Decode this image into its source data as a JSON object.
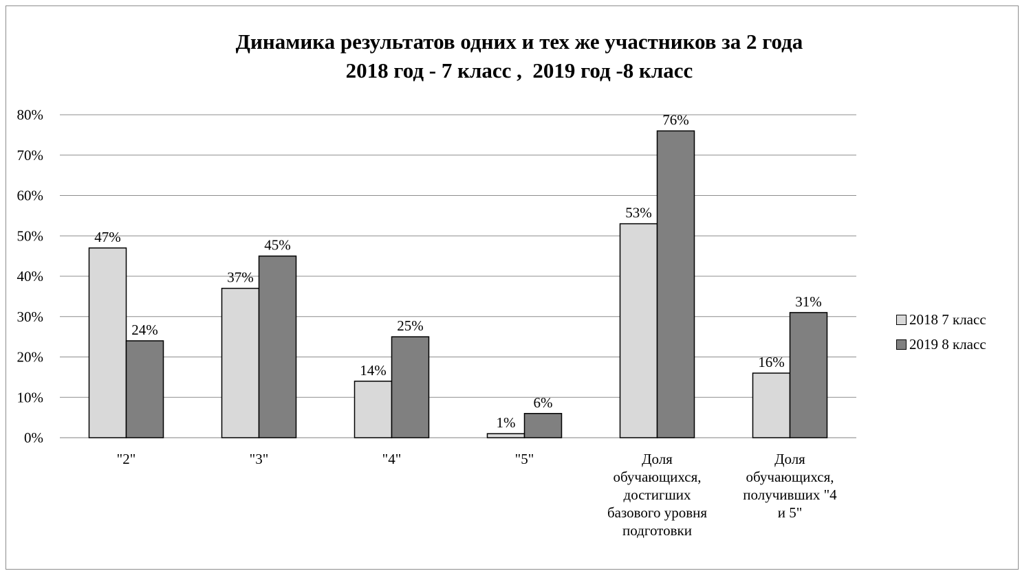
{
  "chart_data": {
    "type": "bar",
    "title": [
      "Динамика результатов одних и тех же участников за 2 года",
      "2018 год - 7 класс ,  2019 год -8 класс"
    ],
    "categories": [
      [
        "\"2\""
      ],
      [
        "\"3\""
      ],
      [
        "\"4\""
      ],
      [
        "\"5\""
      ],
      [
        "Доля",
        "обучающихся,",
        "достигших",
        "базового уровня",
        "подготовки"
      ],
      [
        "Доля",
        "обучающихся,",
        "получивших \"4",
        "и 5\""
      ]
    ],
    "series": [
      {
        "name": "2018 7 класс",
        "color": "#d9d9d9",
        "values": [
          47,
          37,
          14,
          1,
          53,
          16
        ],
        "labels": [
          "47%",
          "37%",
          "14%",
          "1%",
          "53%",
          "16%"
        ]
      },
      {
        "name": "2019 8 класс",
        "color": "#808080",
        "values": [
          24,
          45,
          25,
          6,
          76,
          31
        ],
        "labels": [
          "24%",
          "45%",
          "25%",
          "6%",
          "76%",
          "31%"
        ]
      }
    ],
    "yticks": [
      "0%",
      "10%",
      "20%",
      "30%",
      "40%",
      "50%",
      "60%",
      "70%",
      "80%"
    ],
    "ylim": [
      0,
      80
    ],
    "grid": true,
    "legend": "right"
  }
}
